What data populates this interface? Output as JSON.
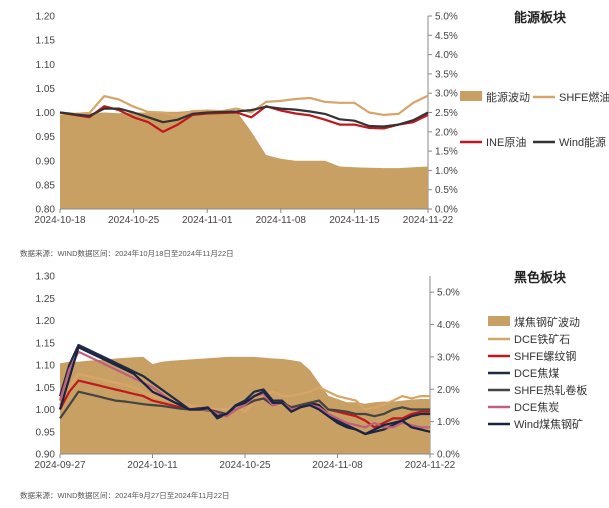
{
  "chart_data": [
    {
      "type": "line",
      "title": "能源板块",
      "source": "数据来源：WIND数据区间：2024年10月18日至2024年11月22日",
      "x_ticks": [
        "2024-10-18",
        "2024-10-25",
        "2024-11-01",
        "2024-11-08",
        "2024-11-15",
        "2024-11-22"
      ],
      "y_left_ticks": [
        "0.80",
        "0.85",
        "0.90",
        "0.95",
        "1.00",
        "1.05",
        "1.10",
        "1.15",
        "1.20"
      ],
      "y_right_ticks": [
        "0.0%",
        "0.5%",
        "1.0%",
        "1.5%",
        "2.0%",
        "2.5%",
        "3.0%",
        "3.5%",
        "4.0%",
        "4.5%",
        "5.0%"
      ],
      "ylim_left": [
        0.8,
        1.2
      ],
      "ylim_right": [
        0.0,
        5.0
      ],
      "x_count": 26,
      "area_series": {
        "name": "能源波动",
        "color": "#c9a063",
        "values": [
          2.45,
          2.45,
          2.48,
          2.5,
          2.48,
          2.5,
          2.5,
          2.52,
          2.52,
          2.55,
          2.55,
          2.53,
          2.53,
          2.0,
          1.4,
          1.3,
          1.25,
          1.25,
          1.25,
          1.1,
          1.08,
          1.07,
          1.06,
          1.06,
          1.08,
          1.1
        ]
      },
      "line_series": [
        {
          "name": "SHFE燃油",
          "color": "#d6a56a",
          "values": [
            1.0,
            0.997,
            0.999,
            1.034,
            1.027,
            1.012,
            1.001,
            1.0,
            0.993,
            1.003,
            1.004,
            1.003,
            1.008,
            1.0,
            1.022,
            1.024,
            1.028,
            1.03,
            1.022,
            1.02,
            1.02,
            1.0,
            0.995,
            0.997,
            1.02,
            1.035
          ]
        },
        {
          "name": "INE原油",
          "color": "#c0181e",
          "values": [
            1.0,
            0.995,
            0.99,
            1.013,
            1.005,
            0.99,
            0.98,
            0.96,
            0.975,
            0.995,
            0.998,
            0.999,
            1.0,
            0.99,
            1.013,
            1.004,
            0.998,
            0.994,
            0.985,
            0.975,
            0.975,
            0.968,
            0.967,
            0.975,
            0.98,
            0.995
          ]
        },
        {
          "name": "Wind能源",
          "color": "#333333",
          "values": [
            1.0,
            0.996,
            0.993,
            1.008,
            1.008,
            1.0,
            0.99,
            0.98,
            0.985,
            0.997,
            1.0,
            1.001,
            1.002,
            1.005,
            1.012,
            1.008,
            1.006,
            1.002,
            0.997,
            0.986,
            0.983,
            0.972,
            0.971,
            0.975,
            0.984,
            1.0
          ]
        }
      ],
      "legend": [
        "能源波动",
        "SHFE燃油",
        "INE原油",
        "Wind能源"
      ]
    },
    {
      "type": "line",
      "title": "黑色板块",
      "source": "数据来源：WIND数据区间：2024年9月27日至2024年11月22日",
      "x_ticks": [
        "2024-09-27",
        "2024-10-11",
        "2024-10-25",
        "2024-11-08",
        "2024-11-22"
      ],
      "y_left_ticks": [
        "0.90",
        "0.95",
        "1.00",
        "1.05",
        "1.10",
        "1.15",
        "1.20",
        "1.25",
        "1.30"
      ],
      "y_right_ticks": [
        "0.0%",
        "1.0%",
        "2.0%",
        "3.0%",
        "4.0%",
        "5.0%"
      ],
      "ylim_left": [
        0.9,
        1.3
      ],
      "ylim_right": [
        0.0,
        5.5
      ],
      "x_count": 41,
      "area_series": {
        "name": "煤焦钢矿波动",
        "color": "#c9a063",
        "values": [
          2.8,
          2.85,
          2.85,
          2.88,
          2.9,
          2.92,
          2.95,
          2.97,
          2.99,
          3.0,
          2.78,
          2.85,
          2.88,
          2.9,
          2.92,
          2.94,
          2.96,
          2.98,
          3.0,
          3.0,
          3.0,
          3.0,
          2.98,
          2.95,
          2.94,
          2.9,
          2.85,
          2.6,
          2.2,
          1.8,
          1.7,
          1.6,
          1.6,
          1.55,
          1.6,
          1.62,
          1.62,
          1.65,
          1.68,
          1.7,
          1.7
        ]
      },
      "line_series": [
        {
          "name": "DCE铁矿石",
          "color": "#d6a56a",
          "values": [
            1.01,
            1.05,
            1.08,
            1.075,
            1.07,
            1.065,
            1.06,
            1.055,
            1.05,
            1.04,
            1.03,
            1.025,
            1.02,
            1.015,
            1.01,
            1.005,
            1.0,
            1.001,
            1.0,
            1.005,
            0.995,
            1.02,
            1.03,
            1.04,
            1.03,
            1.03,
            1.035,
            1.04,
            1.05,
            1.04,
            1.03,
            1.025,
            1.02,
            1.0,
            1.005,
            1.01,
            1.02,
            1.03,
            1.025,
            1.03,
            1.03
          ]
        },
        {
          "name": "SHFE螺纹钢",
          "color": "#c0181e",
          "values": [
            1.0,
            1.04,
            1.065,
            1.06,
            1.055,
            1.05,
            1.045,
            1.04,
            1.035,
            1.03,
            1.02,
            1.015,
            1.01,
            1.005,
            1.0,
            1.003,
            1.0,
            0.995,
            0.985,
            1.0,
            1.01,
            1.02,
            1.025,
            1.01,
            1.015,
            1.005,
            1.01,
            1.015,
            1.02,
            1.0,
            0.995,
            0.99,
            0.985,
            0.975,
            0.96,
            0.97,
            0.98,
            0.98,
            0.99,
            0.995,
            0.995
          ]
        },
        {
          "name": "DCE焦煤",
          "color": "#1f2a44",
          "values": [
            1.03,
            1.1,
            1.145,
            1.135,
            1.125,
            1.115,
            1.105,
            1.095,
            1.085,
            1.075,
            1.06,
            1.045,
            1.03,
            1.015,
            1.0,
            1.002,
            1.005,
            0.98,
            0.99,
            1.01,
            1.02,
            1.04,
            1.045,
            1.02,
            1.02,
            1.0,
            1.01,
            1.015,
            1.01,
            0.99,
            0.975,
            0.965,
            0.955,
            0.945,
            0.95,
            0.955,
            0.965,
            0.975,
            0.985,
            0.99,
            0.99
          ]
        },
        {
          "name": "SHFE热轧卷板",
          "color": "#444444",
          "values": [
            0.98,
            1.01,
            1.04,
            1.035,
            1.03,
            1.025,
            1.02,
            1.018,
            1.015,
            1.012,
            1.01,
            1.008,
            1.005,
            1.002,
            1.0,
            1.0,
            0.998,
            0.995,
            0.99,
            1.0,
            1.01,
            1.02,
            1.025,
            1.01,
            1.015,
            1.005,
            1.01,
            1.015,
            1.02,
            1.0,
            0.998,
            0.995,
            0.99,
            0.99,
            0.985,
            0.99,
            1.0,
            1.005,
            1.0,
            1.0,
            1.0
          ]
        },
        {
          "name": "DCE焦炭",
          "color": "#c06080",
          "values": [
            1.02,
            1.09,
            1.13,
            1.12,
            1.11,
            1.1,
            1.09,
            1.08,
            1.07,
            1.06,
            1.05,
            1.035,
            1.02,
            1.01,
            1.0,
            1.0,
            1.0,
            0.99,
            0.985,
            1.0,
            1.01,
            1.03,
            1.035,
            1.01,
            1.015,
            1.0,
            1.005,
            1.01,
            1.005,
            0.99,
            0.98,
            0.97,
            0.965,
            0.96,
            0.97,
            0.96,
            0.96,
            0.97,
            0.965,
            0.96,
            0.96
          ]
        },
        {
          "name": "Wind煤焦钢矿",
          "color": "#1a2340",
          "values": [
            1.0,
            1.07,
            1.14,
            1.13,
            1.12,
            1.11,
            1.1,
            1.09,
            1.08,
            1.06,
            1.04,
            1.03,
            1.02,
            1.01,
            1.0,
            1.0,
            1.003,
            0.985,
            0.99,
            1.008,
            1.015,
            1.03,
            1.04,
            1.015,
            1.015,
            0.995,
            1.005,
            1.01,
            1.0,
            0.985,
            0.97,
            0.96,
            0.955,
            0.945,
            0.955,
            0.965,
            0.97,
            0.975,
            0.96,
            0.955,
            0.95
          ]
        }
      ],
      "legend": [
        "煤焦钢矿波动",
        "DCE铁矿石",
        "SHFE螺纹钢",
        "DCE焦煤",
        "SHFE热轧卷板",
        "DCE焦炭",
        "Wind煤焦钢矿"
      ]
    }
  ]
}
